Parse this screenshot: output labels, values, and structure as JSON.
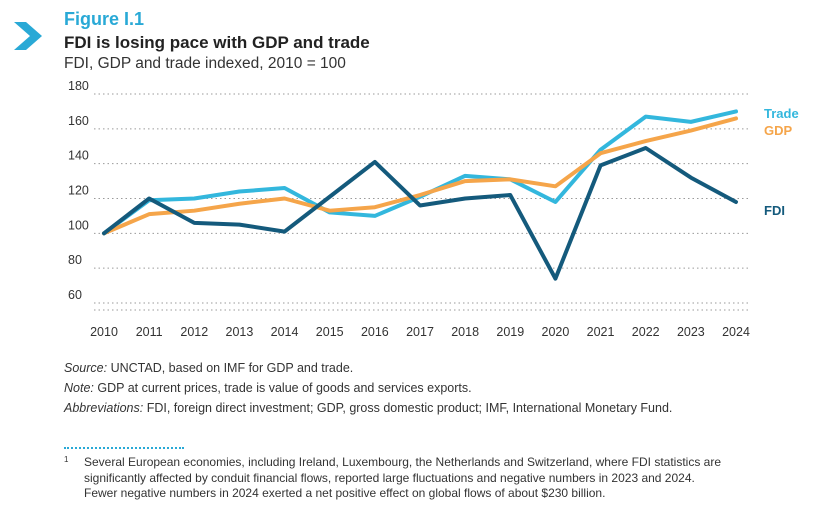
{
  "header": {
    "figure_label": "Figure I.1",
    "title": "FDI is losing pace with GDP and trade",
    "subtitle": "FDI, GDP and trade indexed, 2010 = 100"
  },
  "colors": {
    "accent": "#29a9d6",
    "trade": "#33b7dd",
    "gdp": "#f5a54a",
    "fdi": "#145a7c",
    "grid": "#9a9a9a"
  },
  "chart_data": {
    "type": "line",
    "title": "FDI is losing pace with GDP and trade",
    "subtitle": "FDI, GDP and trade indexed, 2010 = 100",
    "xlabel": "",
    "ylabel": "",
    "x": [
      "2010",
      "2011",
      "2012",
      "2013",
      "2014",
      "2015",
      "2016",
      "2017",
      "2018",
      "2019",
      "2020",
      "2021",
      "2022",
      "2023",
      "2024"
    ],
    "ylim": [
      60,
      180
    ],
    "yticks": [
      60,
      80,
      100,
      120,
      140,
      160,
      180
    ],
    "grid": true,
    "legend": "end-of-line labels",
    "series": [
      {
        "name": "Trade",
        "color": "#33b7dd",
        "values": [
          100,
          119,
          120,
          124,
          126,
          112,
          110,
          121,
          133,
          131,
          118,
          148,
          167,
          164,
          170
        ]
      },
      {
        "name": "GDP",
        "color": "#f5a54a",
        "values": [
          100,
          111,
          113,
          117,
          120,
          113,
          115,
          122,
          130,
          131,
          127,
          146,
          153,
          159,
          166
        ]
      },
      {
        "name": "FDI",
        "color": "#145a7c",
        "values": [
          100,
          120,
          106,
          105,
          101,
          121,
          141,
          116,
          120,
          122,
          74,
          139,
          149,
          132,
          118
        ]
      }
    ]
  },
  "notes": {
    "source_label": "Source:",
    "source_text": " UNCTAD, based on IMF for GDP and trade.",
    "note_label": "Note:",
    "note_text": " GDP at current prices, trade is value of goods and services exports.",
    "abbrev_label": "Abbreviations:",
    "abbrev_text": " FDI, foreign direct investment; GDP, gross domestic product; IMF, International Monetary Fund."
  },
  "footnote": {
    "marker": "1",
    "text": "Several European economies, including Ireland, Luxembourg, the Netherlands and Switzerland, where FDI statistics are significantly affected by conduit financial flows, reported large fluctuations and negative numbers in 2023 and 2024. Fewer negative numbers in 2024 exerted a net positive effect on global flows of about $230 billion."
  }
}
